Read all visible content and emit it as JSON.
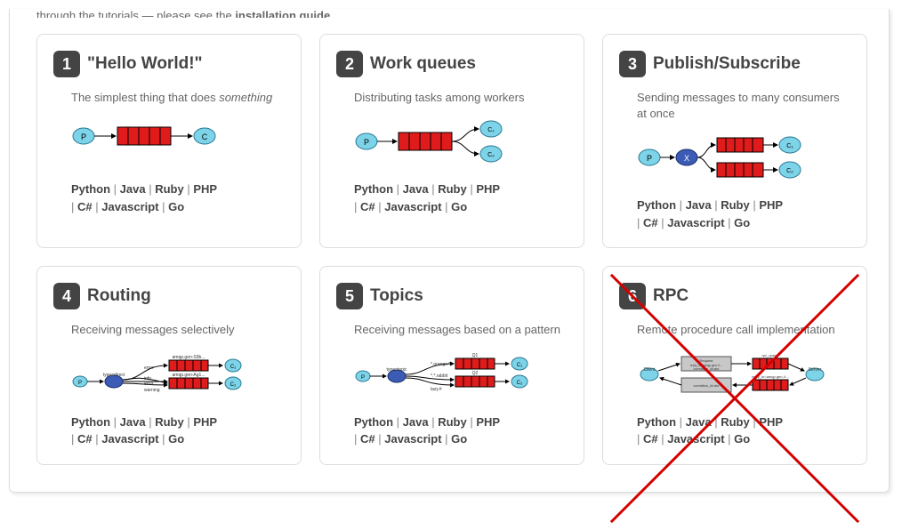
{
  "truncated_text_a": "through the tutorials — please see the ",
  "truncated_text_b": "installation guide.",
  "cards": [
    {
      "num": "1",
      "title": "\"Hello World!\"",
      "desc_a": "The simplest thing that does ",
      "desc_em": "something",
      "desc_b": "",
      "diagram": "simple"
    },
    {
      "num": "2",
      "title": "Work queues",
      "desc_a": "Distributing tasks among workers",
      "desc_em": "",
      "desc_b": "",
      "diagram": "workqueue"
    },
    {
      "num": "3",
      "title": "Publish/Subscribe",
      "desc_a": "Sending messages to many consumers at once",
      "desc_em": "",
      "desc_b": "",
      "diagram": "pubsub"
    },
    {
      "num": "4",
      "title": "Routing",
      "desc_a": "Receiving messages selectively",
      "desc_em": "",
      "desc_b": "",
      "diagram": "routing"
    },
    {
      "num": "5",
      "title": "Topics",
      "desc_a": "Receiving messages based on a pattern",
      "desc_em": "",
      "desc_b": "",
      "diagram": "topics"
    },
    {
      "num": "6",
      "title": "RPC",
      "desc_a": "Remote procedure call implementation",
      "desc_em": "",
      "desc_b": "",
      "diagram": "rpc",
      "crossed": true
    }
  ],
  "languages": [
    "Python",
    "Java",
    "Ruby",
    "PHP",
    "C#",
    "Javascript",
    "Go"
  ],
  "colors": {
    "producer_fill": "#7dd3e8",
    "producer_stroke": "#2a7a94",
    "exchange_fill": "#3b5bb5",
    "exchange_stroke": "#1a2f6b",
    "queue_fill": "#e01b1b",
    "queue_stroke": "#000000",
    "consumer_fill": "#7dd3e8",
    "consumer_stroke": "#2a7a94",
    "server_fill": "#c8c8c8",
    "arrow": "#000000",
    "cross": "#d40000",
    "tiny_text": "#333333"
  },
  "diagram_labels": {
    "P": "P",
    "C": "C",
    "C1": "C₁",
    "C2": "C₂",
    "X": "X",
    "type_direct": "type=direct",
    "type_topic": "type=topic",
    "error": "error",
    "info": "info",
    "warning": "warning",
    "amqg1": "amqp.gen-S9b...",
    "amqg2": "amqp.gen-Ag1...",
    "orange": "*.orange.*",
    "rabbit": "*.*.rabbit",
    "lazy": "lazy.#",
    "Q1": "Q1",
    "Q2": "Q2",
    "client": "Client",
    "server": "Server",
    "request": "Request",
    "reply_to": "reply_to=amqp.gen-X...",
    "correlation": "correlation_id=abc",
    "rpc_queue": "rpc_queue",
    "reply_queue": "reply_to=amqp.gen-X..."
  }
}
